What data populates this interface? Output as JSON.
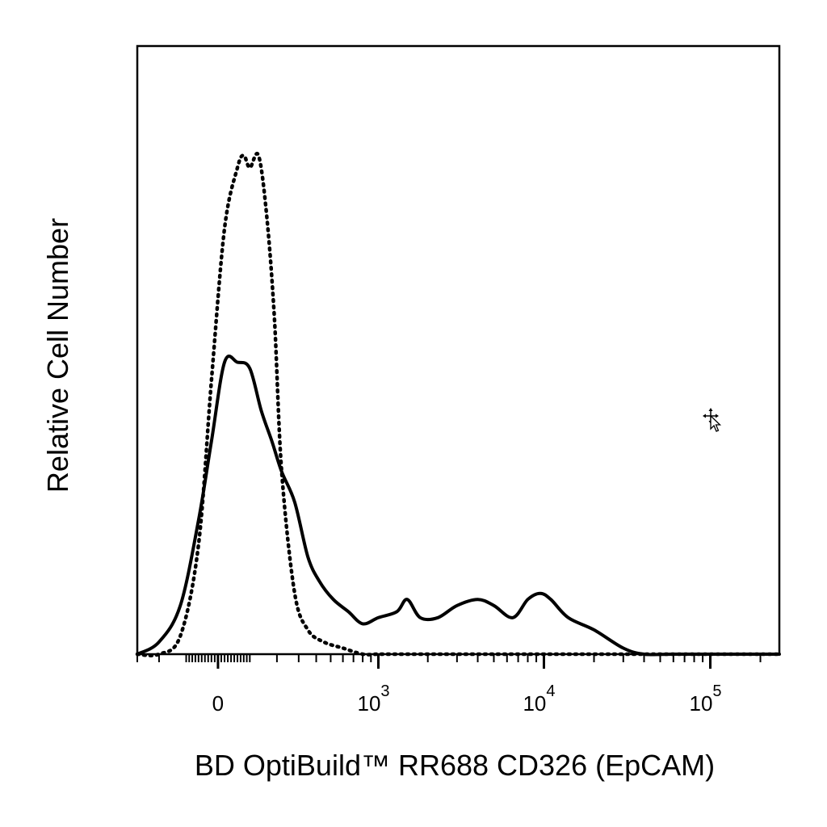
{
  "chart_data": {
    "type": "line",
    "title": "",
    "xlabel": "BD OptiBuild™ RR688 CD326 (EpCAM)",
    "ylabel": "Relative Cell Number",
    "x_scale": "biexponential",
    "xlim": [
      -300,
      260000
    ],
    "ylim": [
      0,
      100
    ],
    "grid": false,
    "legend": "none",
    "x_tick_labels": [
      {
        "value": 0,
        "base": "0",
        "exp": ""
      },
      {
        "value": 1000,
        "base": "10",
        "exp": "3"
      },
      {
        "value": 10000,
        "base": "10",
        "exp": "4"
      },
      {
        "value": 100000,
        "base": "10",
        "exp": "5"
      }
    ],
    "series": [
      {
        "style": "solid",
        "color": "#000000",
        "x": [
          -300,
          -200,
          -120,
          -60,
          -20,
          20,
          60,
          100,
          140,
          180,
          220,
          280,
          350,
          420,
          520,
          650,
          800,
          1000,
          1300,
          1500,
          1800,
          2300,
          3000,
          4000,
          5000,
          6500,
          8000,
          9500,
          11000,
          14000,
          20000,
          30000,
          40000,
          60000,
          100000,
          260000
        ],
        "y": [
          0,
          2,
          8,
          22,
          35,
          48,
          48,
          47,
          40,
          35,
          30,
          25,
          16,
          12,
          9,
          7,
          5,
          6,
          7,
          9,
          6,
          6,
          8,
          9,
          8,
          6,
          9,
          10,
          9,
          6,
          4,
          1,
          0,
          0,
          0,
          0
        ]
      },
      {
        "style": "dotted",
        "color": "#000000",
        "x": [
          -300,
          -200,
          -120,
          -60,
          -20,
          20,
          60,
          80,
          100,
          130,
          160,
          190,
          220,
          280,
          350,
          450,
          600,
          800,
          1000,
          1500,
          3000,
          10000,
          100000,
          260000
        ],
        "y": [
          0,
          0,
          3,
          18,
          45,
          70,
          80,
          82,
          80,
          82,
          72,
          55,
          30,
          10,
          4,
          2,
          1,
          0,
          0,
          0,
          0,
          0,
          0,
          0
        ]
      }
    ]
  }
}
